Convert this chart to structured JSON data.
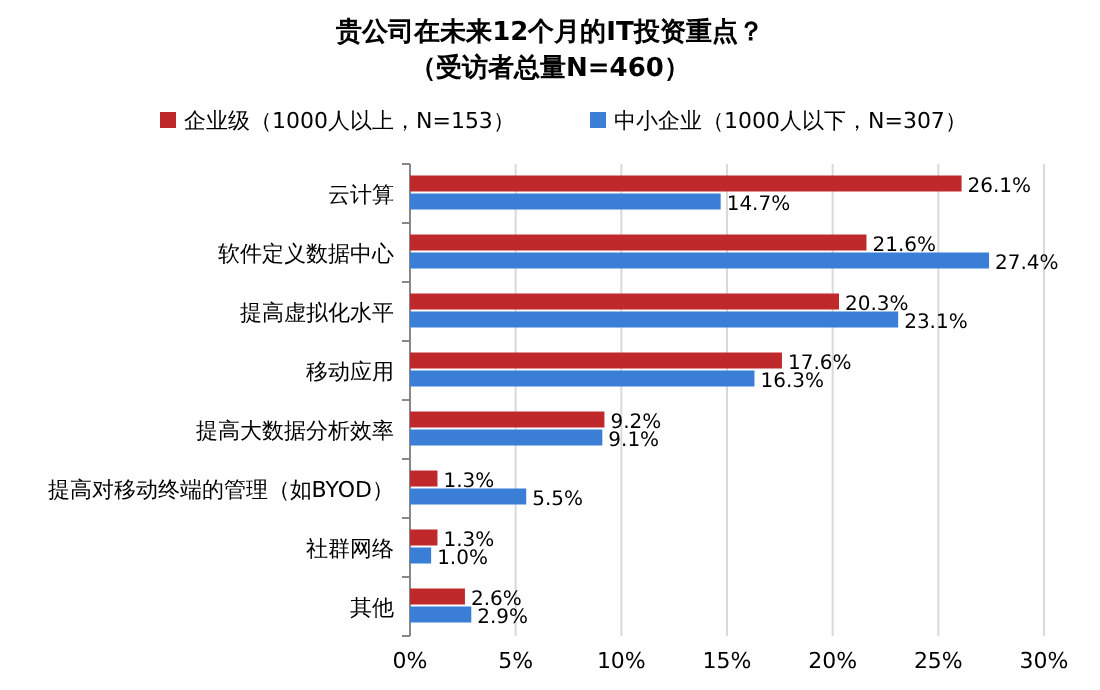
{
  "chart_data": {
    "type": "bar",
    "orientation": "horizontal",
    "title": "贵公司在未来12个月的IT投资重点？",
    "subtitle": "（受访者总量N=460）",
    "categories": [
      "云计算",
      "软件定义数据中心",
      "提高虚拟化水平",
      "移动应用",
      "提高大数据分析效率",
      "提高对移动终端的管理（如BYOD）",
      "社群网络",
      "其他"
    ],
    "series": [
      {
        "name": "企业级（1000人以上，N=153）",
        "color": "#c0292b",
        "values": [
          26.1,
          21.6,
          20.3,
          17.6,
          9.2,
          1.3,
          1.3,
          2.6
        ],
        "value_labels": [
          "26.1%",
          "21.6%",
          "20.3%",
          "17.6%",
          "9.2%",
          "1.3%",
          "1.3%",
          "2.6%"
        ]
      },
      {
        "name": "中小企业（1000人以下，N=307）",
        "color": "#3a7fd5",
        "values": [
          14.7,
          27.4,
          23.1,
          16.3,
          9.1,
          5.5,
          1.0,
          2.9
        ],
        "value_labels": [
          "14.7%",
          "27.4%",
          "23.1%",
          "16.3%",
          "9.1%",
          "5.5%",
          "1.0%",
          "2.9%"
        ]
      }
    ],
    "xlim": [
      0,
      30
    ],
    "xticks": [
      {
        "value": 0,
        "label": "0%"
      },
      {
        "value": 5,
        "label": "5%"
      },
      {
        "value": 10,
        "label": "10%"
      },
      {
        "value": 15,
        "label": "15%"
      },
      {
        "value": 20,
        "label": "20%"
      },
      {
        "value": 25,
        "label": "25%"
      },
      {
        "value": 30,
        "label": "30%"
      }
    ],
    "grid": "x",
    "legend": "top"
  }
}
